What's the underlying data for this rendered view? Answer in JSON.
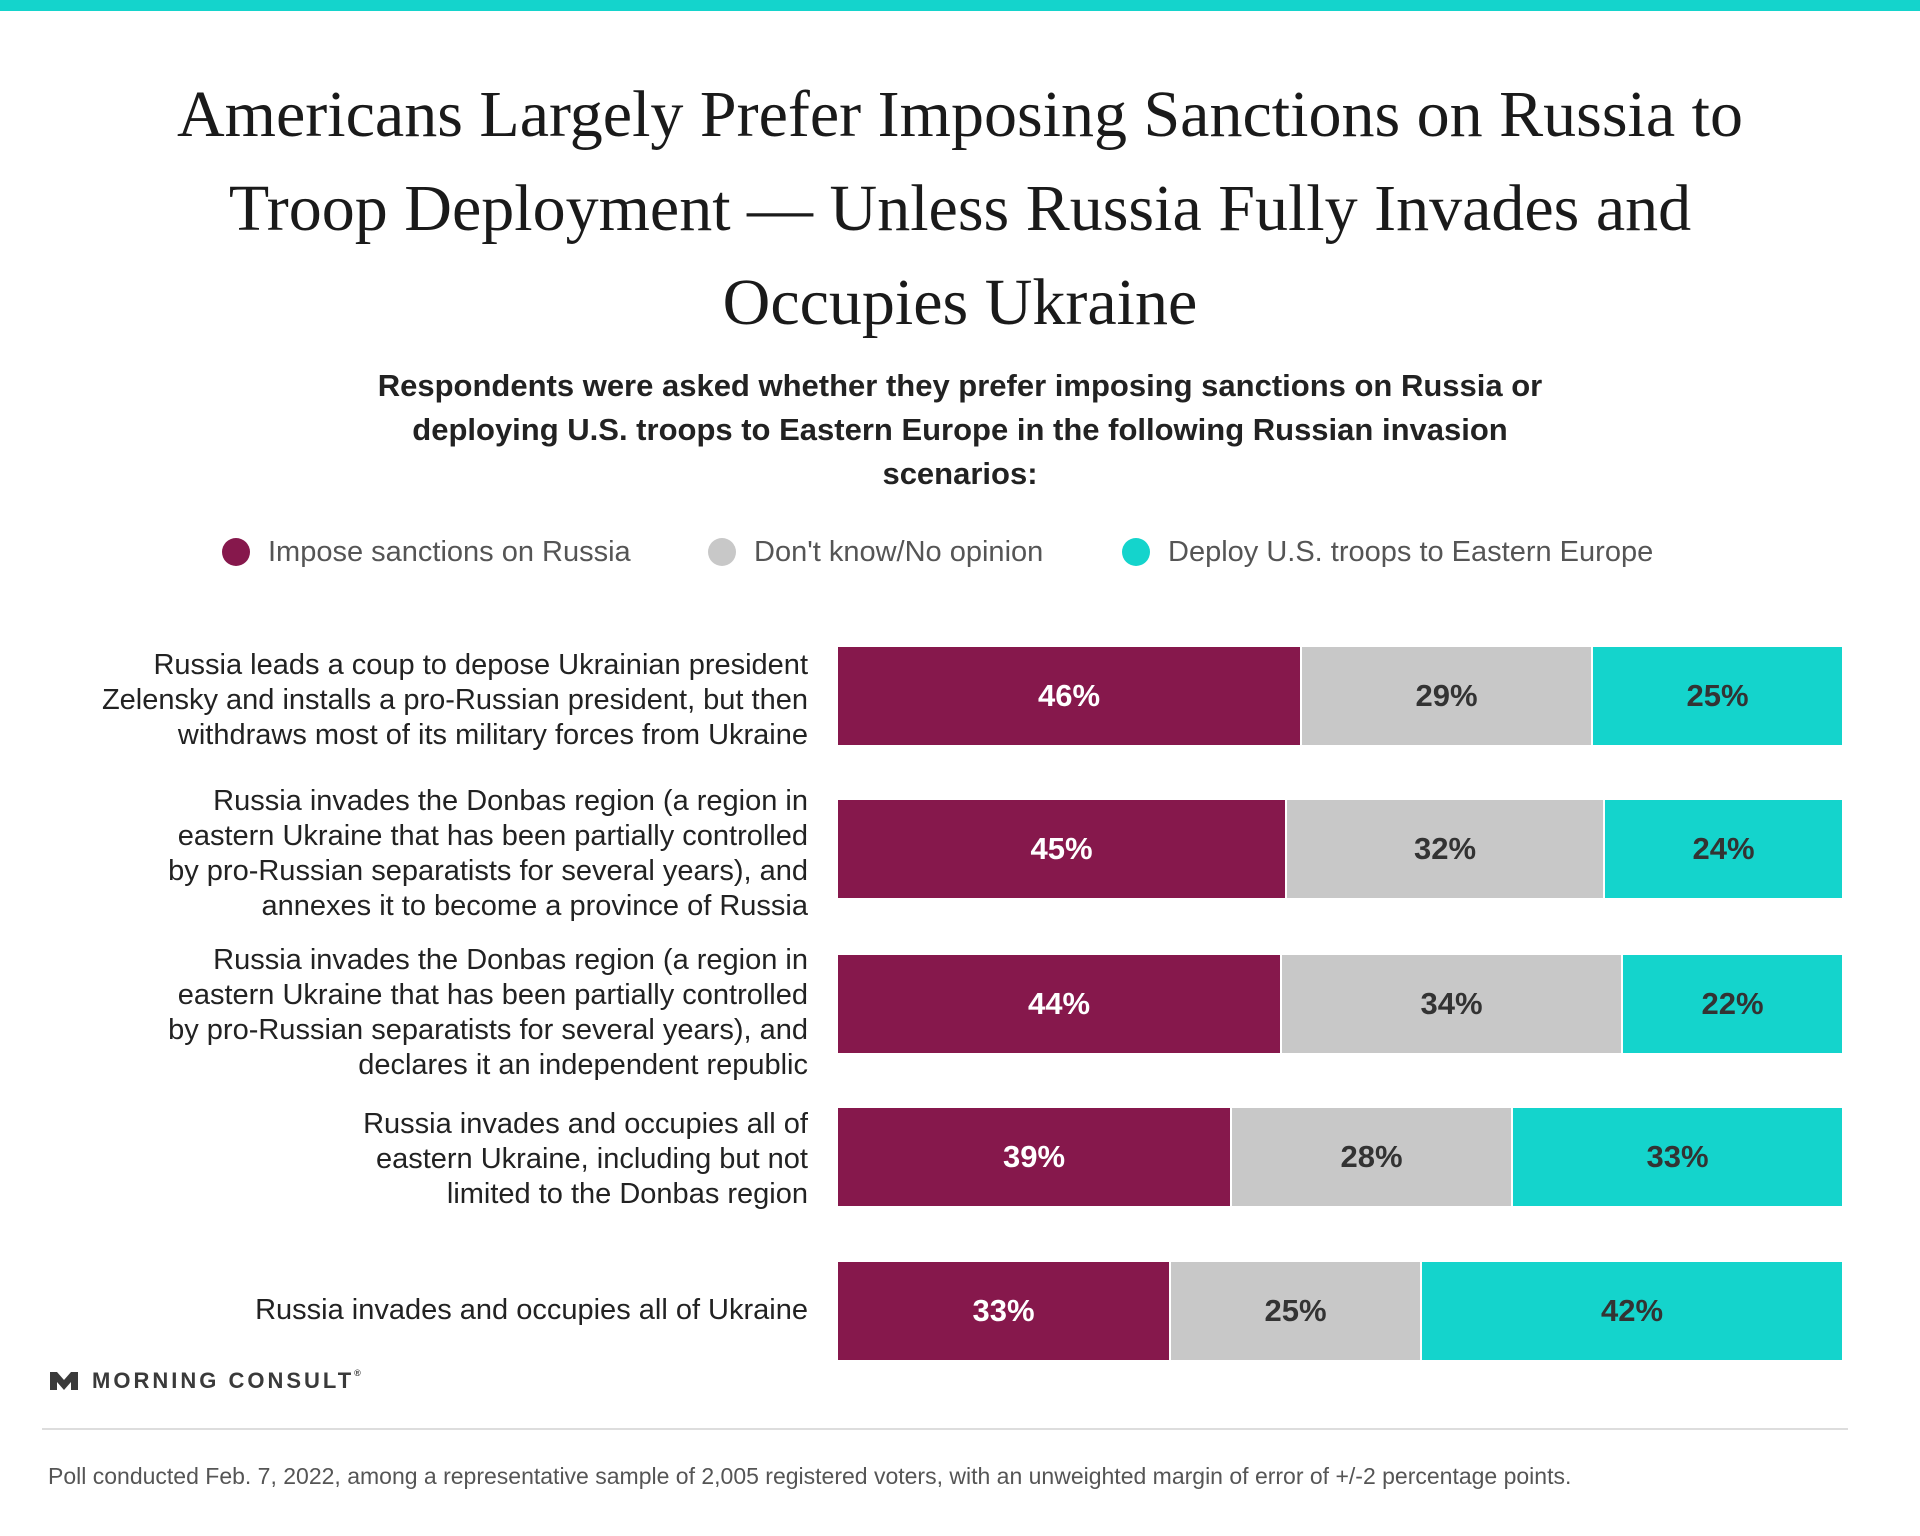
{
  "title": "Americans Largely Prefer Imposing Sanctions on Russia to Troop Deployment — Unless Russia Fully Invades and Occupies Ukraine",
  "subtitle": "Respondents were asked whether they prefer imposing sanctions on Russia or deploying U.S. troops to Eastern Europe in the following Russian invasion scenarios:",
  "legend": [
    {
      "label": "Impose sanctions on Russia",
      "color": "#86184c"
    },
    {
      "label": "Don't know/No opinion",
      "color": "#c8c8c8"
    },
    {
      "label": "Deploy U.S. troops to Eastern Europe",
      "color": "#14d4cc"
    }
  ],
  "brand": {
    "name": "MORNING CONSULT",
    "mark": "®",
    "icon": "morning-consult-logo-icon"
  },
  "footnote": "Poll conducted Feb. 7, 2022, among a representative sample of 2,005 registered voters, with an unweighted margin of error of +/-2 percentage points.",
  "chart_data": {
    "type": "bar",
    "orientation": "horizontal",
    "stacked": true,
    "unit": "%",
    "categories": [
      "Russia leads a coup to depose Ukrainian president Zelensky and installs a pro-Russian president, but then withdraws most of its military forces from Ukraine",
      "Russia invades the Donbas region (a region in eastern Ukraine that has been partially controlled by pro-Russian separatists for several years), and annexes it to become a province of Russia",
      "Russia invades the Donbas region (a region in eastern Ukraine that has been partially controlled by pro-Russian separatists for several years), and declares it an independent republic",
      "Russia invades and occupies all of eastern Ukraine, including but not limited to the Donbas region",
      "Russia invades and occupies all of Ukraine"
    ],
    "series": [
      {
        "name": "Impose sanctions on Russia",
        "color": "#86184c",
        "label_color": "#ffffff",
        "values": [
          46,
          45,
          44,
          39,
          33
        ]
      },
      {
        "name": "Don't know/No opinion",
        "color": "#c8c8c8",
        "label_color": "#333333",
        "values": [
          29,
          32,
          34,
          28,
          25
        ]
      },
      {
        "name": "Deploy U.S. troops to Eastern Europe",
        "color": "#14d4cc",
        "label_color": "#333333",
        "values": [
          25,
          24,
          22,
          33,
          42
        ]
      }
    ],
    "legend_position": "top",
    "grid": false,
    "xlim": [
      0,
      100
    ]
  }
}
